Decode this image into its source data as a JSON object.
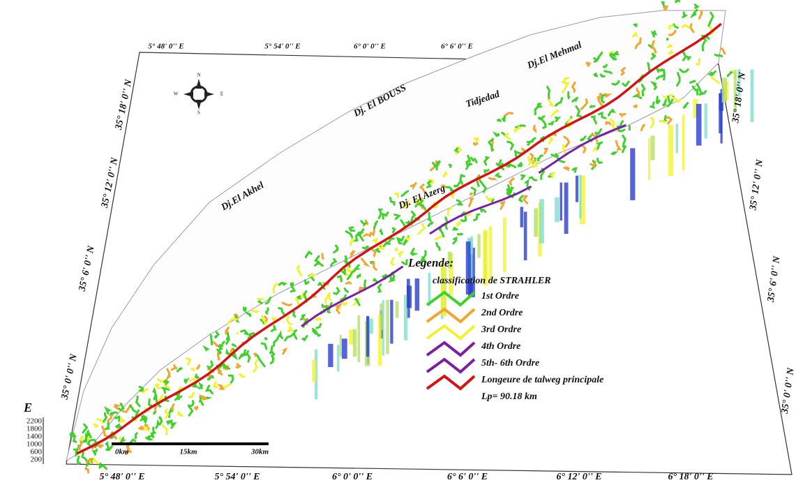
{
  "map": {
    "top_coords": [
      "5° 48' 0'' E",
      "5° 54' 0'' E",
      "6° 0' 0'' E",
      "6° 6' 0'' E"
    ],
    "bottom_coords": [
      "5° 48' 0'' E",
      "5° 54' 0'' E",
      "6° 0' 0'' E",
      "6° 6' 0'' E",
      "6° 12' 0'' E",
      "6° 18' 0'' E"
    ],
    "left_coords": [
      "35° 18' 0'' N",
      "35° 12' 0'' N",
      "35° 6' 0'' N",
      "35° 0' 0'' N"
    ],
    "right_coords": [
      "35° 18' 0'' N",
      "35° 12' 0'' N",
      "35° 6' 0'' N",
      "35° 0' 0'' N"
    ],
    "places": [
      "Dj.El Mehmal",
      "Dj. El BOUSS",
      "Tidjedad",
      "Dj.El Akhel",
      "Dj. El Azerg"
    ],
    "compass": [
      "N",
      "S",
      "E",
      "W"
    ],
    "legend": {
      "title": "Legende:",
      "subtitle": "classification de STRAHLER",
      "items": [
        {
          "label": "1st Ordre",
          "color": "#3fd12b"
        },
        {
          "label": "2nd Ordre",
          "color": "#f2a531"
        },
        {
          "label": "3rd Ordre",
          "color": "#f2f234"
        },
        {
          "label": "4th Ordre",
          "color": "#7a20a3"
        },
        {
          "label": "5th- 6th Ordre",
          "color": "#7a20a3"
        },
        {
          "label": "Longeure de talweg principale",
          "color": "#d41414"
        }
      ],
      "note": "Lp= 90.18 km"
    },
    "scale": [
      "0km",
      "15km",
      "30km"
    ],
    "elevation": {
      "label": "E",
      "ticks": [
        "2200",
        "1800",
        "1400",
        "1000",
        "600",
        "200"
      ]
    }
  }
}
